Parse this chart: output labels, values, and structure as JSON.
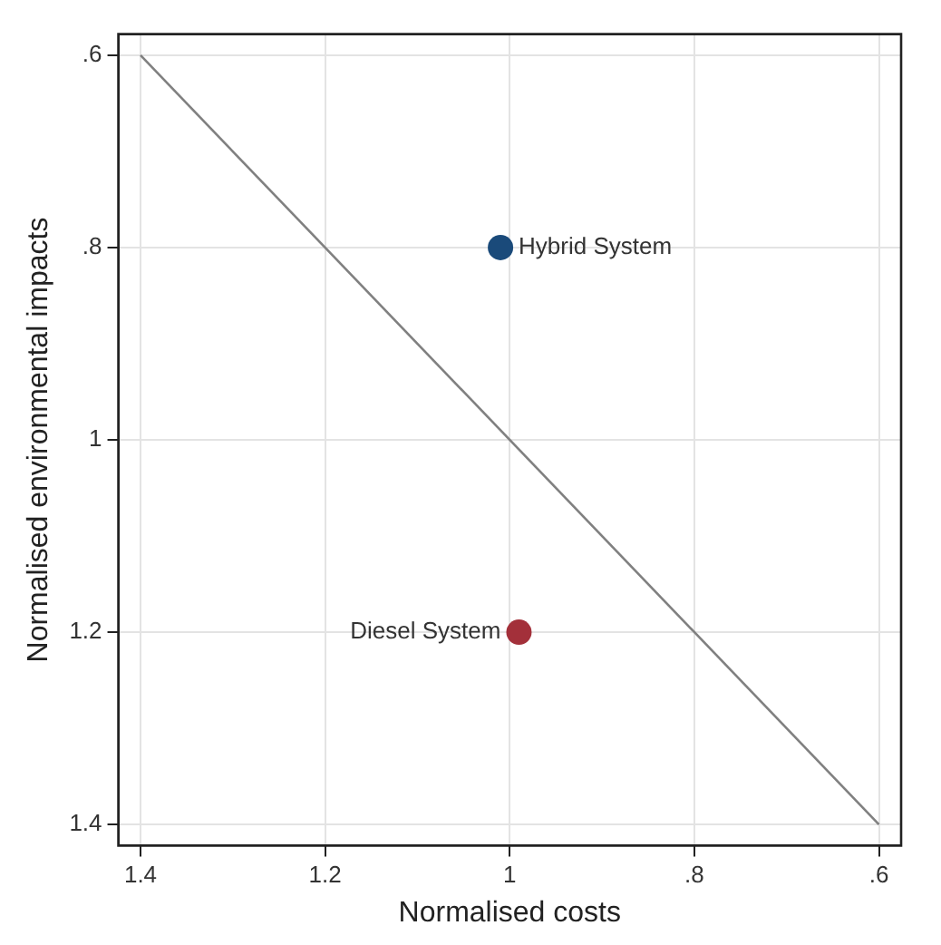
{
  "chart_data": {
    "type": "scatter",
    "xlabel": "Normalised costs",
    "ylabel": "Normalised environmental impacts",
    "xlim": [
      1.424,
      0.576
    ],
    "ylim": [
      1.422,
      0.578
    ],
    "xticks": [
      1.4,
      1.2,
      1,
      {
        "value": 0.8,
        "label": ".8"
      },
      {
        "value": 0.6,
        "label": ".6"
      }
    ],
    "yticks": [
      {
        "value": 0.6,
        "label": ".6"
      },
      {
        "value": 0.8,
        "label": ".8"
      },
      1,
      1.2,
      1.4
    ],
    "grid": true,
    "legend": false,
    "marker": "circle",
    "series": [
      {
        "type": "line",
        "color": "#808080",
        "x": [
          1.4,
          0.6
        ],
        "values": [
          0.6,
          1.4
        ],
        "marker": "none",
        "line_style": "solid"
      },
      {
        "name": "Hybrid System",
        "color": "#1a4a7a",
        "x": [
          1.01
        ],
        "values": [
          0.8
        ]
      },
      {
        "name": "Diesel System",
        "color": "#a3303a",
        "x": [
          0.99
        ],
        "values": [
          1.2
        ]
      }
    ]
  }
}
